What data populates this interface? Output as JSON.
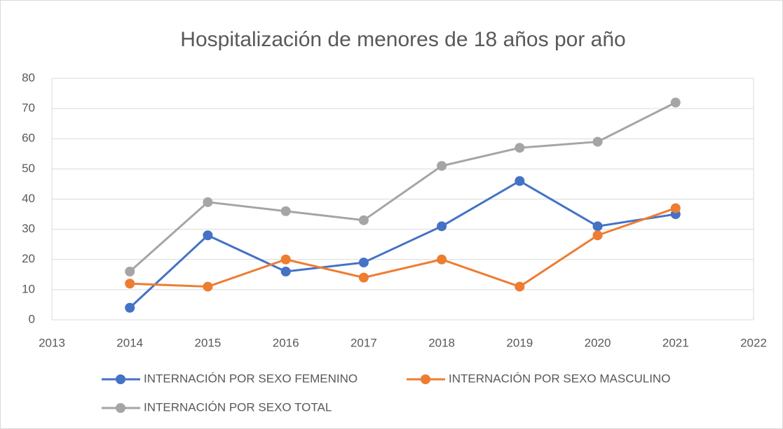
{
  "chart_data": {
    "type": "line",
    "title": "Hospitalización de menores de 18 años por año",
    "x": [
      2014,
      2015,
      2016,
      2017,
      2018,
      2019,
      2020,
      2021
    ],
    "series": [
      {
        "name": "INTERNACIÓN POR SEXO FEMENINO",
        "color": "#4472c4",
        "values": [
          4,
          28,
          16,
          19,
          31,
          46,
          31,
          35
        ]
      },
      {
        "name": "INTERNACIÓN POR SEXO MASCULINO",
        "color": "#ed7d31",
        "values": [
          12,
          11,
          20,
          14,
          20,
          11,
          28,
          37
        ]
      },
      {
        "name": "INTERNACIÓN POR SEXO TOTAL",
        "color": "#a5a5a5",
        "values": [
          16,
          39,
          36,
          33,
          51,
          57,
          59,
          72
        ]
      }
    ],
    "xlim": [
      2013,
      2022
    ],
    "xticks": [
      2013,
      2014,
      2015,
      2016,
      2017,
      2018,
      2019,
      2020,
      2021,
      2022
    ],
    "ylim": [
      0,
      80
    ],
    "yticks": [
      0,
      10,
      20,
      30,
      40,
      50,
      60,
      70,
      80
    ],
    "grid": true,
    "legend": "bottom"
  }
}
